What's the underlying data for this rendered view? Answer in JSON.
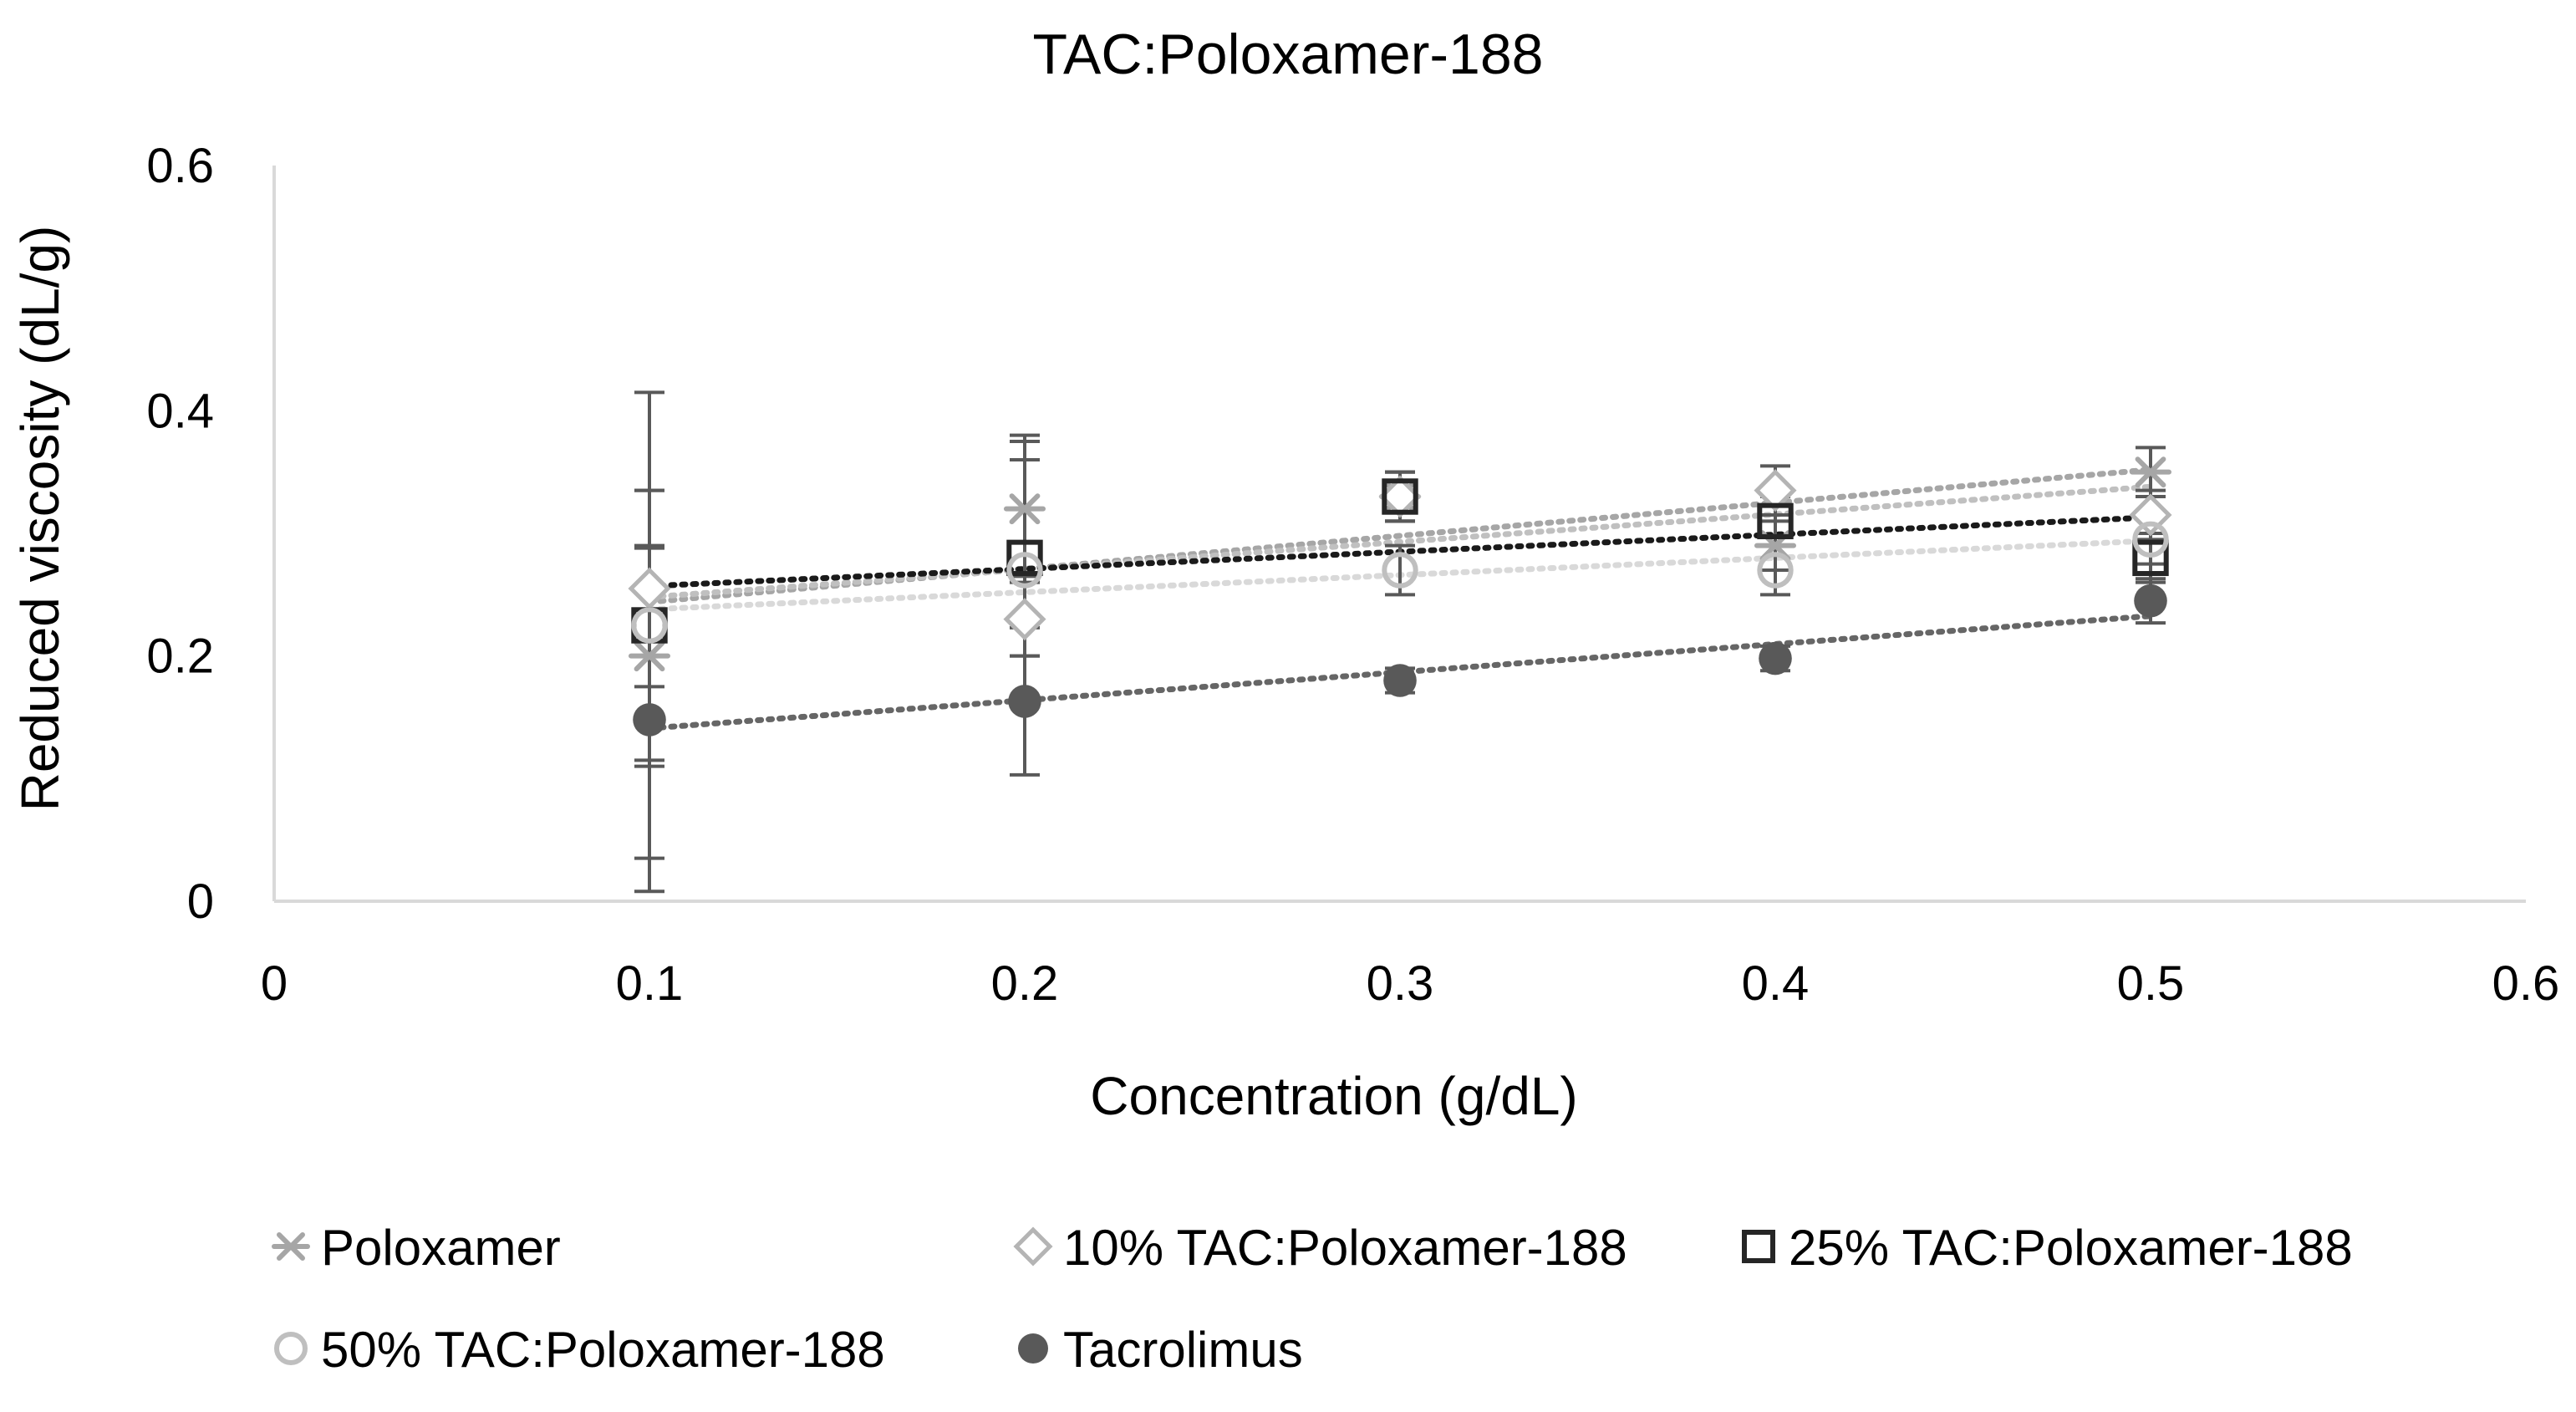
{
  "chart_data": {
    "type": "scatter",
    "title": "TAC:Poloxamer-188",
    "xlabel": "Concentration (g/dL)",
    "ylabel": "Reduced viscosity (dL/g)",
    "xlim": [
      0,
      0.6
    ],
    "ylim": [
      0,
      0.6
    ],
    "x_ticks": [
      0,
      0.1,
      0.2,
      0.3,
      0.4,
      0.5,
      0.6
    ],
    "y_ticks": [
      0,
      0.2,
      0.4,
      0.6
    ],
    "x_tick_labels": [
      "0",
      "0.1",
      "0.2",
      "0.3",
      "0.4",
      "0.5",
      "0.6"
    ],
    "y_tick_labels": [
      "0",
      "0.2",
      "0.4",
      "0.6"
    ],
    "grid": false,
    "legend_position": "bottom",
    "trendline": "linear, dotted",
    "series": [
      {
        "name": "Poloxamer",
        "marker": "asterisk",
        "color": "#a6a6a6",
        "trend_color": "#a6a6a6",
        "x": [
          0.1,
          0.2,
          0.3,
          0.4,
          0.5
        ],
        "y": [
          0.2,
          0.32,
          0.33,
          0.29,
          0.35
        ],
        "error": [
          0.09,
          0.055,
          0.02,
          0.02,
          0.02
        ]
      },
      {
        "name": "10% TAC:Poloxamer-188",
        "marker": "diamond",
        "color": "#b4b4b4",
        "trend_color": "#c0c0c0",
        "x": [
          0.1,
          0.2,
          0.3,
          0.4,
          0.5
        ],
        "y": [
          0.255,
          0.23,
          0.33,
          0.335,
          0.315
        ],
        "error": [
          0.08,
          0.03,
          0.02,
          0.02,
          0.02
        ]
      },
      {
        "name": "25% TAC:Poloxamer-188",
        "marker": "square",
        "color": "#262626",
        "trend_color": "#1a1a1a",
        "x": [
          0.1,
          0.2,
          0.3,
          0.4,
          0.5
        ],
        "y": [
          0.225,
          0.28,
          0.33,
          0.31,
          0.28
        ],
        "error": [
          0.11,
          0.08,
          0.02,
          0.02,
          0.02
        ]
      },
      {
        "name": "50% TAC:Poloxamer-188",
        "marker": "circle-open",
        "color": "#bfbfbf",
        "trend_color": "#d9d9d9",
        "x": [
          0.1,
          0.2,
          0.3,
          0.4,
          0.5
        ],
        "y": [
          0.225,
          0.27,
          0.27,
          0.27,
          0.295
        ],
        "error": [
          0.19,
          0.11,
          0.02,
          0.02,
          0.02
        ]
      },
      {
        "name": "Tacrolimus",
        "marker": "circle-filled",
        "color": "#595959",
        "trend_color": "#666666",
        "x": [
          0.1,
          0.2,
          0.3,
          0.4,
          0.5
        ],
        "y": [
          0.148,
          0.163,
          0.18,
          0.198,
          0.245
        ],
        "error": [
          0.14,
          0.06,
          0.01,
          0.01,
          0.018
        ]
      }
    ]
  }
}
